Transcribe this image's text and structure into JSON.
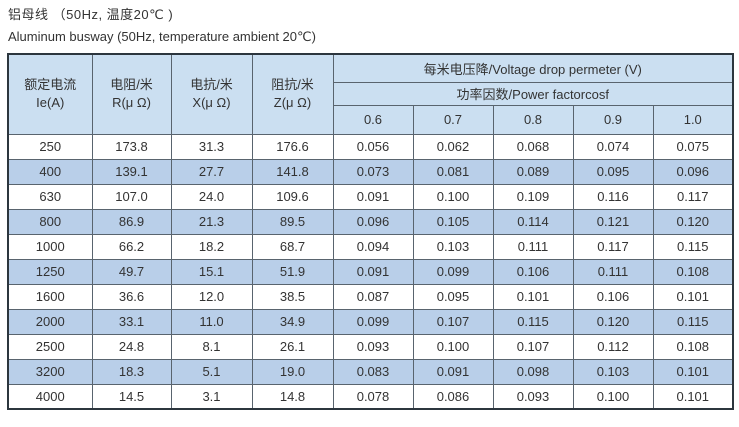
{
  "header": {
    "title_zh": "铝母线 （50Hz, 温度20℃ )",
    "title_en": "Aluminum busway (50Hz, temperature ambient 20℃)"
  },
  "table": {
    "headers": {
      "cols": [
        {
          "zh": "额定电流",
          "en": "Ie(A)"
        },
        {
          "zh": "电阻/米",
          "en": "R(μ Ω)"
        },
        {
          "zh": "电抗/米",
          "en": "X(μ Ω)"
        },
        {
          "zh": "阻抗/米",
          "en": "Z(μ Ω)"
        }
      ],
      "voltage_drop": "每米电压降/Voltage drop permeter (V)",
      "power_factor": "功率因数/Power factorcosf",
      "cos_values": [
        "0.6",
        "0.7",
        "0.8",
        "0.9",
        "1.0"
      ]
    },
    "rows": [
      [
        "250",
        "173.8",
        "31.3",
        "176.6",
        "0.056",
        "0.062",
        "0.068",
        "0.074",
        "0.075"
      ],
      [
        "400",
        "139.1",
        "27.7",
        "141.8",
        "0.073",
        "0.081",
        "0.089",
        "0.095",
        "0.096"
      ],
      [
        "630",
        "107.0",
        "24.0",
        "109.6",
        "0.091",
        "0.100",
        "0.109",
        "0.116",
        "0.117"
      ],
      [
        "800",
        "86.9",
        "21.3",
        "89.5",
        "0.096",
        "0.105",
        "0.114",
        "0.121",
        "0.120"
      ],
      [
        "1000",
        "66.2",
        "18.2",
        "68.7",
        "0.094",
        "0.103",
        "0.111",
        "0.117",
        "0.115"
      ],
      [
        "1250",
        "49.7",
        "15.1",
        "51.9",
        "0.091",
        "0.099",
        "0.106",
        "0.111",
        "0.108"
      ],
      [
        "1600",
        "36.6",
        "12.0",
        "38.5",
        "0.087",
        "0.095",
        "0.101",
        "0.106",
        "0.101"
      ],
      [
        "2000",
        "33.1",
        "11.0",
        "34.9",
        "0.099",
        "0.107",
        "0.115",
        "0.120",
        "0.115"
      ],
      [
        "2500",
        "24.8",
        "8.1",
        "26.1",
        "0.093",
        "0.100",
        "0.107",
        "0.112",
        "0.108"
      ],
      [
        "3200",
        "18.3",
        "5.1",
        "19.0",
        "0.083",
        "0.091",
        "0.098",
        "0.103",
        "0.101"
      ],
      [
        "4000",
        "14.5",
        "3.1",
        "14.8",
        "0.078",
        "0.086",
        "0.093",
        "0.100",
        "0.101"
      ]
    ]
  },
  "colors": {
    "header_bg": "#cbdff1",
    "row_alt_bg": "#b9cfe9",
    "row_bg": "#ffffff",
    "border_outer": "#2c363e",
    "border_inner": "#59646e",
    "text": "#333333"
  }
}
